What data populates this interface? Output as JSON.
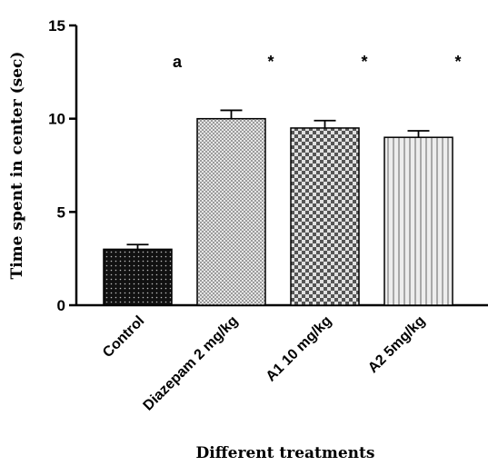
{
  "chart_data": {
    "type": "bar",
    "categories": [
      "Control",
      "Diazepam 2 mg/kg",
      "A1 10 mg/kg",
      "A2 5mg/kg"
    ],
    "values": [
      3.0,
      10.0,
      9.5,
      9.0
    ],
    "errors": [
      0.25,
      0.45,
      0.4,
      0.35
    ],
    "annotations": [
      "a",
      "*",
      "*",
      "*"
    ],
    "xlabel": "Different treatments",
    "ylabel": "Time spent in center (sec)",
    "ylim": [
      0,
      15
    ],
    "yticks": [
      "0",
      "5",
      "10",
      "15"
    ],
    "grid": false,
    "bar_fills": [
      "dotted-black",
      "fine-checker-light",
      "checker-dark",
      "vertical-stripes"
    ]
  }
}
